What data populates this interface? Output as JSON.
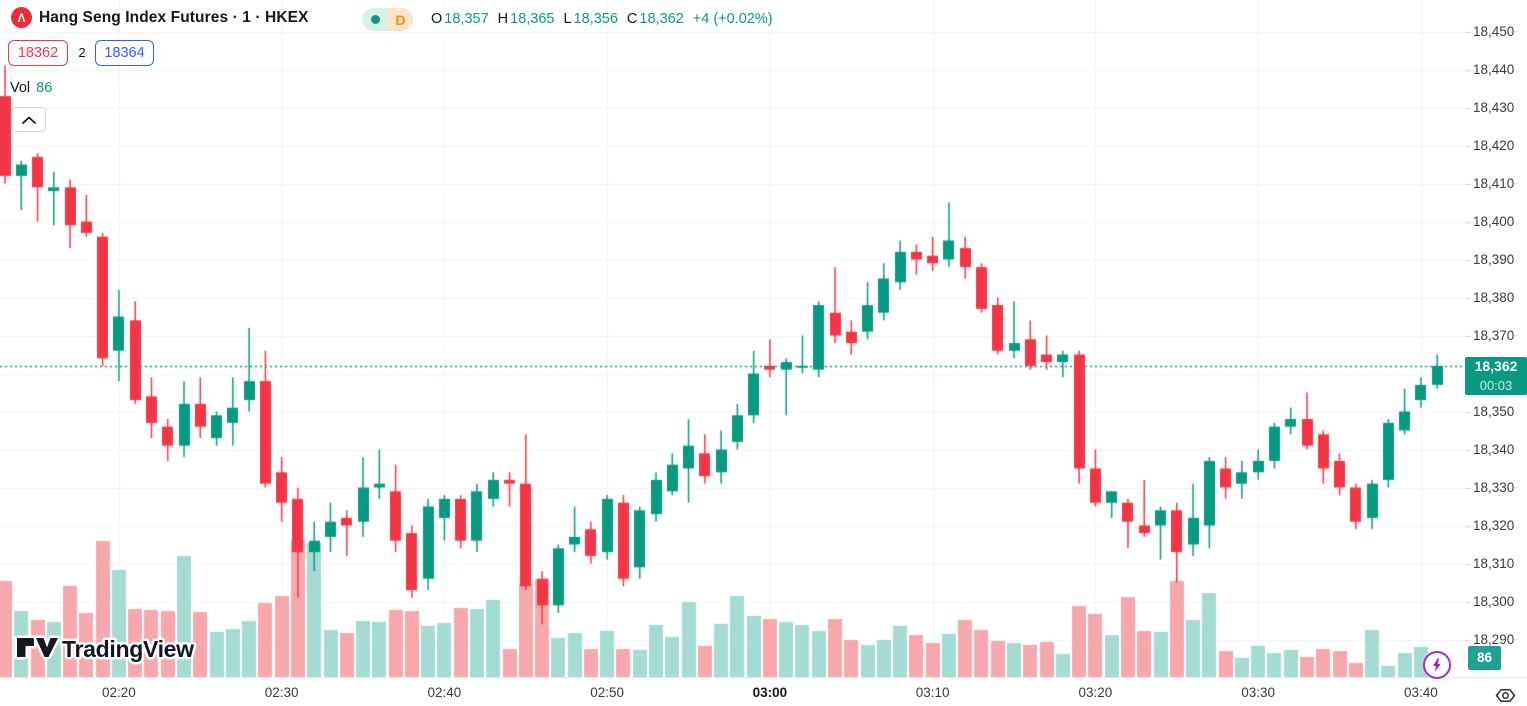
{
  "header": {
    "logo_letter": "Λ",
    "symbol_title": "Hang Seng Index Futures · 1 · HKEX",
    "interval_letter": "D",
    "ohlc_items": [
      [
        "O",
        "18,357"
      ],
      [
        "H",
        "18,365"
      ],
      [
        "L",
        "18,356"
      ],
      [
        "C",
        "18,362"
      ]
    ],
    "change_text": "+4 (+0.02%)"
  },
  "spread": {
    "bid": "18362",
    "mid": "2",
    "ask": "18364"
  },
  "volume_indicator": {
    "label": "Vol",
    "value": "86"
  },
  "watermark_text": "TradingView",
  "price_axis": {
    "ticks": [
      "18,450",
      "18,440",
      "18,430",
      "18,420",
      "18,410",
      "18,400",
      "18,390",
      "18,380",
      "18,370",
      "18,350",
      "18,340",
      "18,330",
      "18,320",
      "18,310",
      "18,300",
      "18,290"
    ],
    "last_price_label": "18,362",
    "countdown": "00:03",
    "volume_badge": "86"
  },
  "time_axis": {
    "labels": [
      "02:20",
      "02:30",
      "02:40",
      "02:50",
      "03:00",
      "03:10",
      "03:20",
      "03:30",
      "03:40"
    ],
    "bold_label": "03:00"
  },
  "colors": {
    "up": "#089981",
    "down": "#f23645",
    "vol_up": "#a4dbd2",
    "vol_down": "#f6a8ad",
    "grid": "#f0f3fa",
    "axis_text": "#363a45",
    "title_text": "#131722",
    "bid_red": "#f23645",
    "ask_blue": "#2962ff",
    "badge_green": "#089981",
    "volume_badge_green": "#1fa294",
    "countdown_text": "#c6ebe3",
    "interval_orange": "#f28a1d",
    "interval_bg": "#fbe4c5",
    "dot_seg_bg": "#d7f0ea",
    "logo_red": "#ee2b38",
    "purple": "#9c27b0",
    "watermark_ink": "#131722"
  },
  "chart_data": {
    "type": "candlestick",
    "symbol": "Hang Seng Index Futures",
    "interval": "1",
    "exchange": "HKEX",
    "last_price": 18362,
    "last_change": "+4 (+0.02%)",
    "countdown": "00:03",
    "price_axis_range": [
      18290,
      18450
    ],
    "grid": true,
    "volume_pane": true,
    "candles": [
      [
        "02:13",
        18433,
        18441,
        18410,
        18412,
        432
      ],
      [
        "02:14",
        18412,
        18416,
        18403,
        18415,
        297
      ],
      [
        "02:15",
        18417,
        18418,
        18400,
        18409,
        257
      ],
      [
        "02:16",
        18408,
        18413,
        18399,
        18409,
        248
      ],
      [
        "02:17",
        18409,
        18411,
        18393,
        18399,
        410
      ],
      [
        "02:18",
        18400,
        18407,
        18396,
        18397,
        288
      ],
      [
        "02:19",
        18396,
        18397,
        18362,
        18364,
        612
      ],
      [
        "02:20",
        18366,
        18382,
        18358,
        18375,
        482
      ],
      [
        "02:21",
        18374,
        18379,
        18352,
        18353,
        306
      ],
      [
        "02:22",
        18354,
        18359,
        18343,
        18347,
        302
      ],
      [
        "02:23",
        18346,
        18348,
        18337,
        18341,
        297
      ],
      [
        "02:24",
        18341,
        18358,
        18338,
        18352,
        545
      ],
      [
        "02:25",
        18352,
        18359,
        18343,
        18346,
        293
      ],
      [
        "02:26",
        18343,
        18350,
        18341,
        18349,
        203
      ],
      [
        "02:27",
        18347,
        18359,
        18341,
        18351,
        216
      ],
      [
        "02:28",
        18353,
        18372,
        18350,
        18358,
        252
      ],
      [
        "02:29",
        18358,
        18366,
        18330,
        18331,
        333
      ],
      [
        "02:30",
        18334,
        18338,
        18321,
        18326,
        365
      ],
      [
        "02:31",
        18327,
        18330,
        18301,
        18313,
        617
      ],
      [
        "02:32",
        18313,
        18321,
        18308,
        18316,
        603
      ],
      [
        "02:33",
        18317,
        18326,
        18313,
        18321,
        212
      ],
      [
        "02:34",
        18322,
        18324,
        18312,
        18320,
        198
      ],
      [
        "02:35",
        18321,
        18338,
        18317,
        18330,
        252
      ],
      [
        "02:36",
        18330,
        18340,
        18327,
        18331,
        248
      ],
      [
        "02:37",
        18329,
        18336,
        18313,
        18316,
        302
      ],
      [
        "02:38",
        18318,
        18320,
        18301,
        18303,
        297
      ],
      [
        "02:39",
        18306,
        18327,
        18303,
        18325,
        230
      ],
      [
        "02:40",
        18322,
        18328,
        18316,
        18327,
        243
      ],
      [
        "02:41",
        18327,
        18328,
        18314,
        18316,
        311
      ],
      [
        "02:42",
        18316,
        18331,
        18313,
        18329,
        306
      ],
      [
        "02:43",
        18327,
        18334,
        18325,
        18332,
        347
      ],
      [
        "02:44",
        18332,
        18334,
        18325,
        18331,
        126
      ],
      [
        "02:45",
        18331,
        18344,
        18303,
        18304,
        419
      ],
      [
        "02:46",
        18306,
        18308,
        18294,
        18299,
        441
      ],
      [
        "02:47",
        18299,
        18315,
        18297,
        18314,
        176
      ],
      [
        "02:48",
        18315,
        18325,
        18313,
        18317,
        198
      ],
      [
        "02:49",
        18319,
        18321,
        18310,
        18312,
        126
      ],
      [
        "02:50",
        18313,
        18328,
        18311,
        18327,
        207
      ],
      [
        "02:51",
        18326,
        18328,
        18304,
        18306,
        126
      ],
      [
        "02:52",
        18309,
        18325,
        18306,
        18324,
        122
      ],
      [
        "02:53",
        18323,
        18334,
        18321,
        18332,
        234
      ],
      [
        "02:54",
        18329,
        18339,
        18328,
        18336,
        180
      ],
      [
        "02:55",
        18335,
        18348,
        18326,
        18341,
        338
      ],
      [
        "02:56",
        18339,
        18344,
        18331,
        18333,
        140
      ],
      [
        "02:57",
        18334,
        18345,
        18331,
        18340,
        239
      ],
      [
        "02:58",
        18342,
        18352,
        18340,
        18349,
        365
      ],
      [
        "02:59",
        18349,
        18366,
        18347,
        18360,
        275
      ],
      [
        "03:00",
        18362,
        18369,
        18359,
        18361,
        261
      ],
      [
        "03:01",
        18361,
        18364,
        18349,
        18363,
        248
      ],
      [
        "03:02",
        18362,
        18370,
        18360,
        18362,
        234
      ],
      [
        "03:03",
        18361,
        18379,
        18359,
        18378,
        207
      ],
      [
        "03:04",
        18376,
        18388,
        18368,
        18370,
        261
      ],
      [
        "03:05",
        18371,
        18374,
        18365,
        18368,
        167
      ],
      [
        "03:06",
        18371,
        18384,
        18369,
        18378,
        144
      ],
      [
        "03:07",
        18376,
        18389,
        18374,
        18385,
        167
      ],
      [
        "03:08",
        18384,
        18395,
        18382,
        18392,
        230
      ],
      [
        "03:09",
        18392,
        18394,
        18386,
        18390,
        189
      ],
      [
        "03:10",
        18391,
        18396,
        18387,
        18389,
        153
      ],
      [
        "03:11",
        18390,
        18405,
        18388,
        18395,
        194
      ],
      [
        "03:12",
        18393,
        18396,
        18385,
        18388,
        257
      ],
      [
        "03:13",
        18388,
        18389,
        18376,
        18377,
        212
      ],
      [
        "03:14",
        18378,
        18380,
        18365,
        18366,
        162
      ],
      [
        "03:15",
        18366,
        18379,
        18364,
        18368,
        153
      ],
      [
        "03:16",
        18369,
        18374,
        18361,
        18362,
        144
      ],
      [
        "03:17",
        18365,
        18370,
        18361,
        18363,
        158
      ],
      [
        "03:18",
        18363,
        18366,
        18359,
        18365,
        104
      ],
      [
        "03:19",
        18365,
        18366,
        18331,
        18335,
        320
      ],
      [
        "03:20",
        18335,
        18340,
        18325,
        18326,
        284
      ],
      [
        "03:21",
        18326,
        18329,
        18322,
        18329,
        189
      ],
      [
        "03:22",
        18326,
        18327,
        18314,
        18321,
        360
      ],
      [
        "03:23",
        18320,
        18332,
        18317,
        18318,
        207
      ],
      [
        "03:24",
        18320,
        18325,
        18311,
        18324,
        203
      ],
      [
        "03:25",
        18324,
        18326,
        18305,
        18313,
        432
      ],
      [
        "03:26",
        18315,
        18331,
        18312,
        18322,
        257
      ],
      [
        "03:27",
        18320,
        18338,
        18314,
        18337,
        378
      ],
      [
        "03:28",
        18335,
        18338,
        18327,
        18330,
        117
      ],
      [
        "03:29",
        18331,
        18337,
        18327,
        18334,
        86
      ],
      [
        "03:30",
        18334,
        18340,
        18332,
        18337,
        140
      ],
      [
        "03:31",
        18337,
        18347,
        18335,
        18346,
        108
      ],
      [
        "03:32",
        18346,
        18351,
        18344,
        18348,
        122
      ],
      [
        "03:33",
        18348,
        18355,
        18340,
        18341,
        90
      ],
      [
        "03:34",
        18344,
        18345,
        18331,
        18335,
        126
      ],
      [
        "03:35",
        18337,
        18339,
        18328,
        18330,
        117
      ],
      [
        "03:36",
        18330,
        18331,
        18319,
        18321,
        63
      ],
      [
        "03:37",
        18322,
        18332,
        18319,
        18331,
        212
      ],
      [
        "03:38",
        18332,
        18348,
        18330,
        18347,
        50
      ],
      [
        "03:39",
        18345,
        18356,
        18344,
        18350,
        108
      ],
      [
        "03:40",
        18353,
        18359,
        18351,
        18357,
        135
      ],
      [
        "03:41",
        18357,
        18365,
        18356,
        18362,
        86
      ]
    ]
  }
}
